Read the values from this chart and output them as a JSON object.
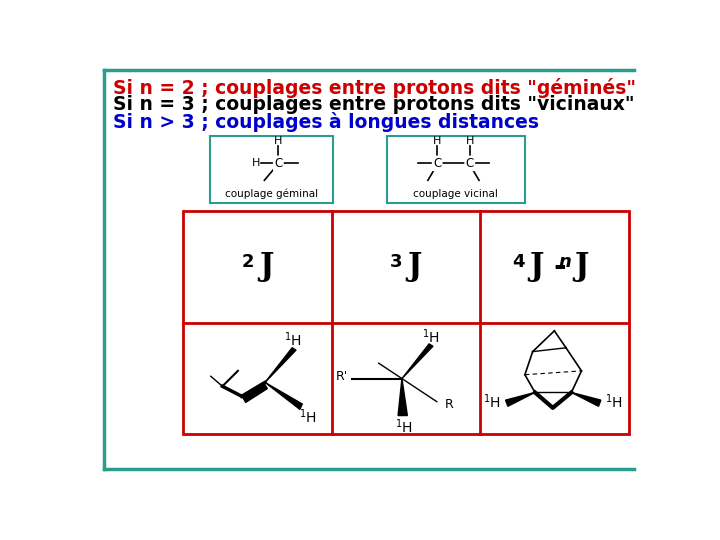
{
  "bg_color": "#ffffff",
  "teal_color": "#2a9d8f",
  "line1_text": "Si n = 2 ; couplages entre protons dits \"géminés\"",
  "line2_text": "Si n = 3 ; couplages entre protons dits \"vicinaux\"",
  "line3_text": "Si n > 3 ; couplages à longues distances",
  "line1_color": "#cc0000",
  "line2_color": "#000000",
  "line3_color": "#0000cc",
  "font_size": 13.5,
  "box_border_color": "#2a9d8f",
  "table_border_color": "#cc0000"
}
